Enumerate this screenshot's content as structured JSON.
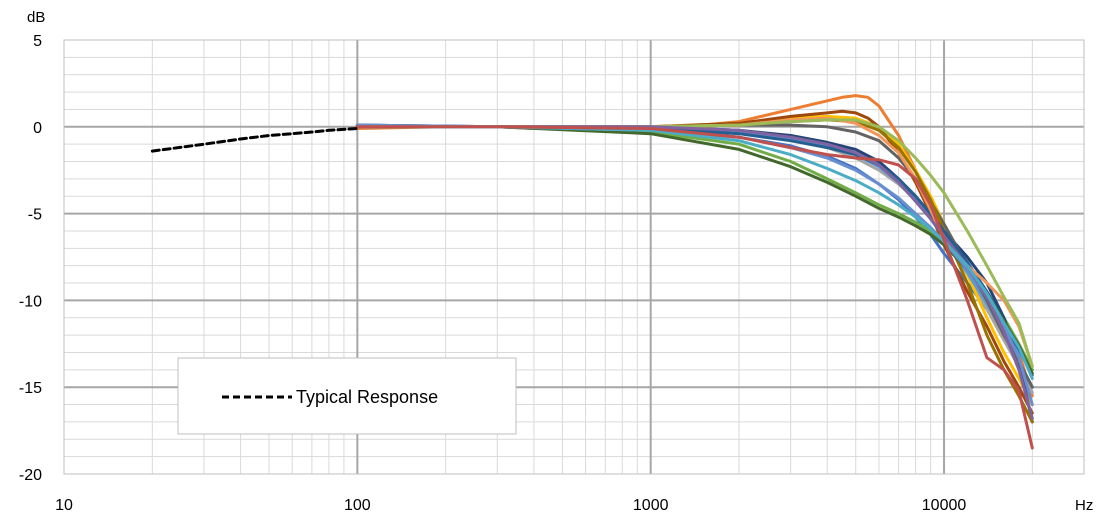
{
  "chart_data": {
    "type": "line",
    "x_scale": "log",
    "xlim": [
      10,
      30000
    ],
    "ylim": [
      -20,
      5
    ],
    "y_unit": "dB",
    "x_unit": "Hz",
    "x_ticks": [
      "10",
      "100",
      "1000",
      "10000"
    ],
    "y_ticks": [
      "5",
      "0",
      "-5",
      "-10",
      "-15",
      "-20"
    ],
    "grid": true,
    "legend_position": "bottom-left",
    "legend_entries": [
      "Typical Response"
    ],
    "series": [
      {
        "name": "Typical Response",
        "style": "dashed",
        "color": "#000000",
        "x": [
          20,
          30,
          40,
          50,
          60,
          70,
          80,
          100
        ],
        "y": [
          -1.4,
          -1.0,
          -0.7,
          -0.5,
          -0.4,
          -0.3,
          -0.2,
          -0.1
        ]
      },
      {
        "color": "#4472c4",
        "x": [
          100,
          200,
          300,
          400,
          500,
          700,
          1000,
          1500,
          2000,
          3000,
          4000,
          5000,
          6000,
          7000,
          8000,
          9000,
          10000,
          12000,
          14000,
          16000,
          18000,
          20000
        ],
        "y": [
          0.1,
          0.0,
          0.0,
          0.0,
          0.0,
          -0.2,
          -0.2,
          -0.4,
          -0.6,
          -1.1,
          -1.7,
          -2.4,
          -3.3,
          -4.2,
          -5.2,
          -6.2,
          -7.3,
          -9.0,
          -10.5,
          -12.0,
          -13.5,
          -15.0
        ]
      },
      {
        "color": "#ed7d31",
        "x": [
          100,
          200,
          300,
          400,
          500,
          700,
          1000,
          1500,
          2000,
          3000,
          4000,
          4500,
          5000,
          5500,
          6000,
          7000,
          8000,
          9000,
          10000,
          12000,
          14000,
          16000,
          18000,
          20000
        ],
        "y": [
          -0.1,
          0.0,
          0.0,
          -0.1,
          0.0,
          0.0,
          0.0,
          0.1,
          0.3,
          1.0,
          1.5,
          1.7,
          1.8,
          1.7,
          1.2,
          -0.5,
          -2.5,
          -4.5,
          -6.2,
          -8.0,
          -9.5,
          -11.0,
          -13.0,
          -15.5
        ]
      },
      {
        "color": "#a5a5a5",
        "x": [
          100,
          300,
          1000,
          2000,
          3000,
          4000,
          5000,
          6000,
          7000,
          8000,
          9000,
          10000,
          12000,
          14000,
          16000,
          18000,
          20000
        ],
        "y": [
          0.0,
          0.0,
          0.0,
          -0.3,
          -0.7,
          -1.2,
          -1.8,
          -2.5,
          -3.3,
          -4.2,
          -5.2,
          -6.3,
          -8.5,
          -10.5,
          -12.3,
          -13.8,
          -15.3
        ]
      },
      {
        "color": "#ffc000",
        "x": [
          100,
          300,
          1000,
          2000,
          3000,
          4000,
          5000,
          6000,
          7000,
          8000,
          9000,
          10000,
          12000,
          14000,
          16000,
          18000,
          20000
        ],
        "y": [
          0.0,
          0.0,
          0.0,
          0.2,
          0.5,
          0.6,
          0.5,
          0.0,
          -1.0,
          -2.5,
          -4.0,
          -5.6,
          -8.5,
          -11.0,
          -13.0,
          -14.5,
          -16.0
        ]
      },
      {
        "color": "#5b9bd5",
        "x": [
          100,
          300,
          1000,
          2000,
          3000,
          4000,
          5000,
          6000,
          7000,
          8000,
          9000,
          10000,
          12000,
          14000,
          16000,
          18000,
          20000
        ],
        "y": [
          0.1,
          0.0,
          -0.1,
          -0.3,
          -0.7,
          -1.1,
          -1.6,
          -2.3,
          -3.2,
          -4.2,
          -5.3,
          -6.4,
          -8.4,
          -10.2,
          -11.8,
          -13.0,
          -14.0
        ]
      },
      {
        "color": "#70ad47",
        "x": [
          100,
          300,
          1000,
          2000,
          3000,
          4000,
          5000,
          6000,
          7000,
          8000,
          9000,
          10000,
          12000,
          14000,
          16000,
          18000,
          20000
        ],
        "y": [
          0.0,
          0.0,
          -0.3,
          -1.0,
          -2.0,
          -3.0,
          -3.8,
          -4.5,
          -5.0,
          -5.5,
          -6.0,
          -6.7,
          -8.0,
          -9.5,
          -11.0,
          -12.5,
          -14.0
        ]
      },
      {
        "color": "#264478",
        "x": [
          100,
          300,
          1000,
          2000,
          3000,
          4000,
          5000,
          6000,
          7000,
          8000,
          9000,
          10000,
          12000,
          14000,
          16000,
          18000,
          20000
        ],
        "y": [
          0.1,
          0.0,
          0.0,
          -0.2,
          -0.5,
          -0.9,
          -1.3,
          -2.0,
          -3.0,
          -4.0,
          -5.0,
          -6.0,
          -7.5,
          -9.0,
          -11.0,
          -13.5,
          -17.0
        ]
      },
      {
        "color": "#9e480e",
        "x": [
          100,
          300,
          1000,
          2000,
          3000,
          4000,
          4500,
          5000,
          5500,
          6000,
          7000,
          8000,
          9000,
          10000,
          12000,
          14000,
          16000,
          18000,
          20000
        ],
        "y": [
          0.0,
          0.0,
          0.0,
          0.2,
          0.6,
          0.8,
          0.9,
          0.8,
          0.5,
          0.0,
          -1.5,
          -3.2,
          -5.0,
          -6.8,
          -9.5,
          -11.5,
          -13.5,
          -15.0,
          -16.5
        ]
      },
      {
        "color": "#636363",
        "x": [
          100,
          300,
          1000,
          2000,
          3000,
          4000,
          5000,
          6000,
          7000,
          8000,
          9000,
          10000,
          12000,
          14000,
          16000,
          18000,
          20000
        ],
        "y": [
          0.0,
          0.0,
          0.0,
          0.1,
          0.1,
          0.0,
          -0.3,
          -0.8,
          -1.8,
          -3.0,
          -4.3,
          -5.6,
          -8.0,
          -10.0,
          -12.0,
          -13.5,
          -15.0
        ]
      },
      {
        "color": "#997300",
        "x": [
          100,
          300,
          1000,
          2000,
          3000,
          4000,
          5000,
          6000,
          7000,
          8000,
          9000,
          10000,
          12000,
          14000,
          16000,
          18000,
          20000
        ],
        "y": [
          0.0,
          0.0,
          0.0,
          0.1,
          0.3,
          0.4,
          0.3,
          -0.2,
          -1.2,
          -2.6,
          -4.2,
          -6.0,
          -9.0,
          -12.0,
          -14.0,
          -15.5,
          -17.0
        ]
      },
      {
        "color": "#255e91",
        "x": [
          100,
          300,
          1000,
          2000,
          3000,
          4000,
          5000,
          6000,
          7000,
          8000,
          9000,
          10000,
          12000,
          14000,
          16000,
          18000,
          20000
        ],
        "y": [
          0.0,
          0.0,
          -0.1,
          -0.4,
          -0.8,
          -1.2,
          -1.6,
          -2.2,
          -3.0,
          -4.0,
          -5.0,
          -6.0,
          -7.8,
          -9.5,
          -11.2,
          -12.8,
          -14.3
        ]
      },
      {
        "color": "#43682b",
        "x": [
          100,
          300,
          1000,
          2000,
          3000,
          4000,
          5000,
          6000,
          7000,
          8000,
          9000,
          10000,
          12000,
          14000,
          16000,
          18000,
          20000
        ],
        "y": [
          0.0,
          0.0,
          -0.4,
          -1.3,
          -2.3,
          -3.2,
          -4.0,
          -4.7,
          -5.2,
          -5.7,
          -6.2,
          -6.8,
          -8.2,
          -9.6,
          -11.2,
          -12.6,
          -14.2
        ]
      },
      {
        "color": "#698ed0",
        "x": [
          100,
          300,
          1000,
          2000,
          3000,
          4000,
          5000,
          6000,
          7000,
          8000,
          9000,
          10000,
          12000,
          14000,
          16000,
          18000,
          20000
        ],
        "y": [
          0.1,
          0.0,
          -0.2,
          -0.6,
          -1.2,
          -1.8,
          -2.5,
          -3.3,
          -4.1,
          -5.0,
          -5.8,
          -6.6,
          -8.2,
          -9.8,
          -11.5,
          -13.3,
          -16.0
        ]
      },
      {
        "color": "#f1975a",
        "x": [
          100,
          300,
          1000,
          2000,
          3000,
          4000,
          5000,
          6000,
          7000,
          8000,
          9000,
          10000,
          12000,
          14000,
          16000,
          18000,
          20000
        ],
        "y": [
          0.0,
          0.0,
          0.0,
          0.1,
          0.4,
          0.5,
          0.2,
          -0.5,
          -1.5,
          -3.0,
          -4.8,
          -6.5,
          -8.0,
          -9.0,
          -10.0,
          -11.5,
          -13.8
        ]
      },
      {
        "color": "#9bbb59",
        "x": [
          100,
          300,
          1000,
          2000,
          3000,
          4000,
          5000,
          6000,
          7000,
          8000,
          9000,
          10000,
          12000,
          14000,
          16000,
          18000,
          20000
        ],
        "y": [
          0.0,
          0.0,
          0.0,
          0.1,
          0.3,
          0.4,
          0.4,
          0.0,
          -0.8,
          -1.8,
          -2.8,
          -3.8,
          -6.0,
          -8.0,
          -9.8,
          -11.3,
          -13.8
        ]
      },
      {
        "color": "#8064a2",
        "x": [
          100,
          300,
          1000,
          2000,
          3000,
          4000,
          5000,
          6000,
          7000,
          8000,
          9000,
          10000,
          12000,
          14000,
          16000,
          18000,
          20000
        ],
        "y": [
          0.0,
          0.0,
          0.0,
          -0.2,
          -0.6,
          -1.0,
          -1.5,
          -2.2,
          -3.2,
          -4.3,
          -5.3,
          -6.3,
          -8.0,
          -9.8,
          -11.8,
          -14.0,
          -16.8
        ]
      },
      {
        "color": "#4bacc6",
        "x": [
          100,
          300,
          1000,
          2000,
          3000,
          4000,
          5000,
          6000,
          7000,
          8000,
          9000,
          10000,
          12000,
          14000,
          16000,
          18000,
          20000
        ],
        "y": [
          0.0,
          0.0,
          -0.2,
          -0.8,
          -1.6,
          -2.4,
          -3.1,
          -3.8,
          -4.5,
          -5.2,
          -5.9,
          -6.6,
          -8.0,
          -9.6,
          -11.3,
          -12.7,
          -14.5
        ]
      },
      {
        "color": "#c0504d",
        "x": [
          100,
          300,
          1000,
          2000,
          3000,
          4000,
          5000,
          6000,
          7000,
          8000,
          9000,
          10000,
          12000,
          14000,
          16000,
          18000,
          20000
        ],
        "y": [
          0.0,
          0.0,
          -0.1,
          -0.6,
          -1.2,
          -1.6,
          -1.8,
          -1.9,
          -2.2,
          -3.0,
          -4.5,
          -6.5,
          -10.0,
          -13.3,
          -14.0,
          -15.2,
          -18.5
        ]
      }
    ]
  }
}
